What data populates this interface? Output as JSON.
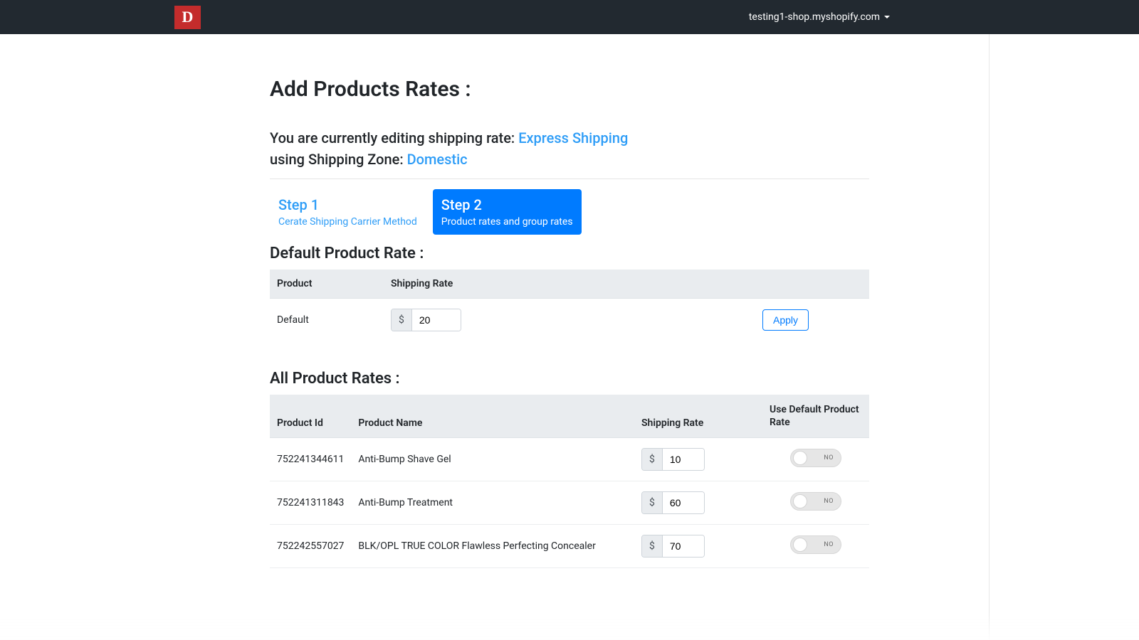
{
  "topbar": {
    "logo_letter": "D",
    "shop_domain": "testing1-shop.myshopify.com"
  },
  "page": {
    "title": "Add Products Rates :",
    "editing_prefix": "You are currently editing shipping rate: ",
    "rate_name": "Express Shipping",
    "zone_prefix": "using Shipping Zone: ",
    "zone_name": "Domestic"
  },
  "steps": {
    "step1": {
      "title": "Step 1",
      "subtitle": "Cerate Shipping Carrier Method"
    },
    "step2": {
      "title": "Step 2",
      "subtitle": "Product rates and group rates"
    }
  },
  "default_rate": {
    "section_title": "Default Product Rate :",
    "col_product": "Product",
    "col_rate": "Shipping Rate",
    "row_label": "Default",
    "currency": "$",
    "value": "20",
    "apply_label": "Apply"
  },
  "all_rates": {
    "section_title": "All Product Rates :",
    "col_id": "Product Id",
    "col_name": "Product Name",
    "col_rate": "Shipping Rate",
    "col_default": "Use Default Product Rate",
    "currency": "$",
    "toggle_off_label": "NO",
    "rows": [
      {
        "id": "752241344611",
        "name": "Anti-Bump Shave Gel",
        "rate": "10"
      },
      {
        "id": "752241311843",
        "name": "Anti-Bump Treatment",
        "rate": "60"
      },
      {
        "id": "752242557027",
        "name": "BLK/OPL TRUE COLOR Flawless Perfecting Concealer",
        "rate": "70"
      }
    ]
  },
  "colors": {
    "topbar_bg": "#222930",
    "logo_bg": "#c42c2c",
    "link": "#2e9df7",
    "primary": "#007bff",
    "header_bg": "#e9ecef"
  }
}
